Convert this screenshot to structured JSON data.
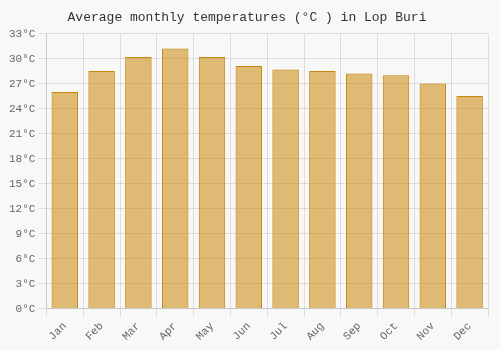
{
  "chart_data": {
    "type": "bar",
    "title": "Average monthly temperatures (°C ) in Lop Buri",
    "categories": [
      "Jan",
      "Feb",
      "Mar",
      "Apr",
      "May",
      "Jun",
      "Jul",
      "Aug",
      "Sep",
      "Oct",
      "Nov",
      "Dec"
    ],
    "values": [
      26.0,
      28.5,
      30.2,
      31.2,
      30.2,
      29.1,
      28.7,
      28.5,
      28.2,
      28.0,
      27.0,
      25.5
    ],
    "color": "#C8860A",
    "ylim": [
      0,
      33
    ],
    "yticks": [
      {
        "value": 0,
        "label": "0°C"
      },
      {
        "value": 3,
        "label": "3°C"
      },
      {
        "value": 6,
        "label": "6°C"
      },
      {
        "value": 9,
        "label": "9°C"
      },
      {
        "value": 12,
        "label": "12°C"
      },
      {
        "value": 15,
        "label": "15°C"
      },
      {
        "value": 18,
        "label": "18°C"
      },
      {
        "value": 21,
        "label": "21°C"
      },
      {
        "value": 24,
        "label": "24°C"
      },
      {
        "value": 27,
        "label": "27°C"
      },
      {
        "value": 30,
        "label": "30°C"
      },
      {
        "value": 33,
        "label": "33°C"
      }
    ],
    "grid": true
  }
}
